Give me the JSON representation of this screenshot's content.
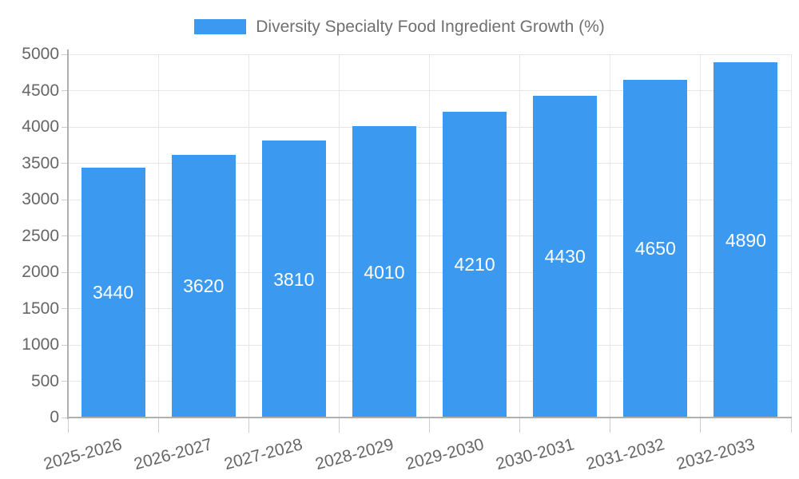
{
  "chart_data": {
    "type": "bar",
    "title": "Diversity Specialty Food Ingredient Growth (%)",
    "categories": [
      "2025-2026",
      "2026-2027",
      "2027-2028",
      "2028-2029",
      "2029-2030",
      "2030-2031",
      "2031-2032",
      "2032-2033"
    ],
    "values": [
      3440,
      3620,
      3810,
      4010,
      4210,
      4430,
      4650,
      4890
    ],
    "series": [
      {
        "name": "Diversity Specialty Food Ingredient Growth (%)",
        "values": [
          3440,
          3620,
          3810,
          4010,
          4210,
          4430,
          4650,
          4890
        ]
      }
    ],
    "xlabel": "",
    "ylabel": "",
    "ylim": [
      0,
      5000
    ],
    "ytick_step": 500,
    "ytick_labels": [
      "0",
      "500",
      "1000",
      "1500",
      "2000",
      "2500",
      "3000",
      "3500",
      "4000",
      "4500",
      "5000"
    ],
    "grid": true,
    "legend_position": "top-center",
    "value_labels": "inside-center-white",
    "colors": {
      "bar": "#3b9af0",
      "bar_label_text": "#ffffff",
      "axis_text": "#666666",
      "legend_text": "#707070",
      "gridline": "#e6e6e6",
      "axis_line": "#b0b0b0",
      "tick_mark": "#cccccc",
      "background": "#ffffff"
    }
  }
}
